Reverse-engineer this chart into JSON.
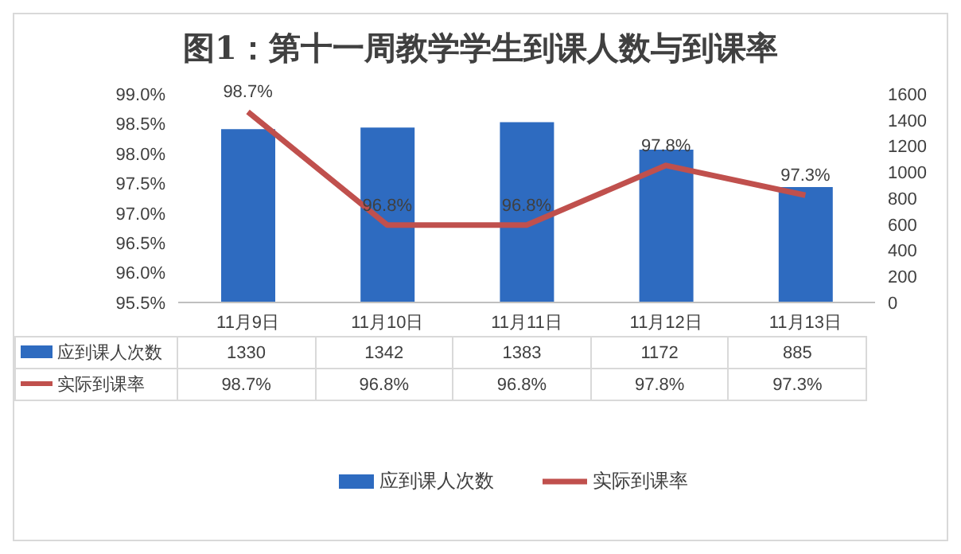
{
  "chart_data": {
    "type": "bar",
    "title": "图1：第十一周教学学生到课人数与到课率",
    "categories": [
      "11月9日",
      "11月10日",
      "11月11日",
      "11月12日",
      "11月13日"
    ],
    "series": [
      {
        "name": "应到课人次数",
        "axis": "y2",
        "color": "#2e6bc0",
        "values": [
          1330,
          1342,
          1383,
          1172,
          885
        ],
        "value_labels": [
          "1330",
          "1342",
          "1383",
          "1172",
          "885"
        ]
      },
      {
        "name": "实际到课率",
        "type": "line",
        "axis": "y",
        "color": "#c0504d",
        "values": [
          98.7,
          96.8,
          96.8,
          97.8,
          97.3
        ],
        "value_labels": [
          "98.7%",
          "96.8%",
          "96.8%",
          "97.8%",
          "97.3%"
        ]
      }
    ],
    "ylim": [
      95.5,
      99.0
    ],
    "yticks": [
      {
        "value": 95.5,
        "label": "95.5%"
      },
      {
        "value": 96.0,
        "label": "96.0%"
      },
      {
        "value": 96.5,
        "label": "96.5%"
      },
      {
        "value": 97.0,
        "label": "97.0%"
      },
      {
        "value": 97.5,
        "label": "97.5%"
      },
      {
        "value": 98.0,
        "label": "98.0%"
      },
      {
        "value": 98.5,
        "label": "98.5%"
      },
      {
        "value": 99.0,
        "label": "99.0%"
      }
    ],
    "y2lim": [
      0,
      1600
    ],
    "y2ticks": [
      0,
      200,
      400,
      600,
      800,
      1000,
      1200,
      1400,
      1600
    ],
    "legend": "bottom",
    "marker": "none",
    "line_style": "solid"
  }
}
